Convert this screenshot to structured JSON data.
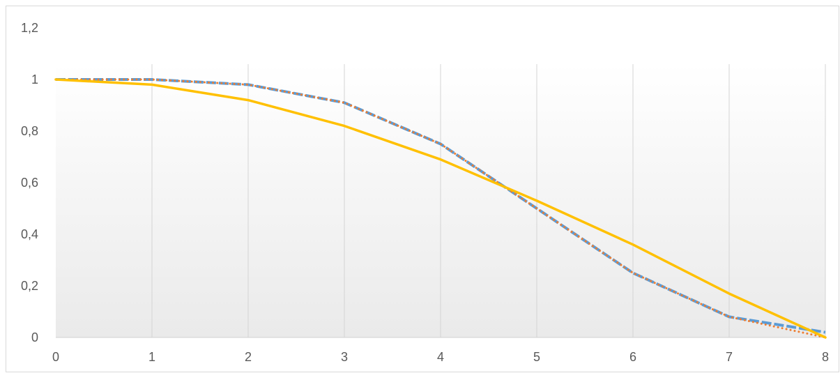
{
  "chart_data": {
    "type": "line",
    "title": "",
    "xlabel": "",
    "ylabel": "",
    "xlim": [
      0,
      8
    ],
    "ylim": [
      0,
      1.2
    ],
    "x_ticks": [
      "0",
      "1",
      "2",
      "3",
      "4",
      "5",
      "6",
      "7",
      "8"
    ],
    "y_ticks": [
      "0",
      "0,2",
      "0,4",
      "0,6",
      "0,8",
      "1",
      "1,2"
    ],
    "grid": "vertical",
    "legend": "none",
    "background": "gradient-grey",
    "series": [
      {
        "style": "dashed",
        "color": "#5B9BD5",
        "x": [
          0,
          1,
          2,
          3,
          4,
          5,
          6,
          7,
          8
        ],
        "y": [
          1.0,
          1.0,
          0.98,
          0.91,
          0.75,
          0.5,
          0.25,
          0.08,
          0.02
        ]
      },
      {
        "style": "dotted",
        "color": "#ED7D31",
        "x": [
          0,
          1,
          2,
          3,
          4,
          5,
          6,
          7,
          8
        ],
        "y": [
          1.0,
          1.0,
          0.98,
          0.91,
          0.75,
          0.5,
          0.25,
          0.08,
          0.0
        ]
      },
      {
        "style": "solid",
        "color": "#FFC000",
        "x": [
          0,
          1,
          2,
          3,
          4,
          5,
          6,
          7,
          8
        ],
        "y": [
          1.0,
          0.98,
          0.92,
          0.82,
          0.69,
          0.53,
          0.36,
          0.17,
          0.0
        ]
      }
    ]
  }
}
